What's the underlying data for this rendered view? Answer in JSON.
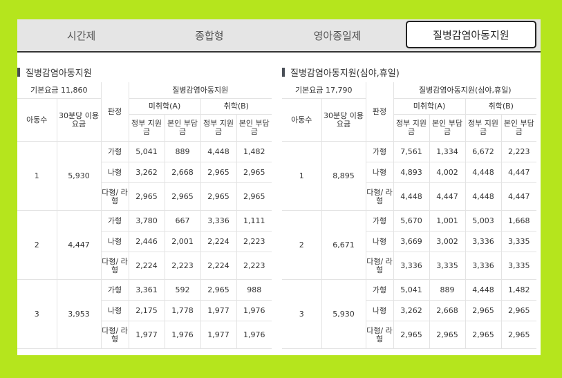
{
  "tabs": [
    {
      "label": "시간제",
      "active": false
    },
    {
      "label": "종합형",
      "active": false
    },
    {
      "label": "영아종일제",
      "active": false
    },
    {
      "label": "질병감염아동지원",
      "active": true
    }
  ],
  "left": {
    "section_title": "질병감염아동지원",
    "base_fee": "기본요금 11,860",
    "group_header": "질병감염아동지원",
    "col_children": "아동수",
    "col_rate": "30분당 이용요금",
    "col_grade": "판정",
    "not_school": "미취학(A)",
    "school": "취학(B)",
    "gov": "정부 지원금",
    "self": "본인 부담금",
    "rows": [
      {
        "count": "1",
        "rate": "5,930",
        "grades": [
          {
            "grade": "가형",
            "a_gov": "5,041",
            "a_self": "889",
            "b_gov": "4,448",
            "b_self": "1,482"
          },
          {
            "grade": "나형",
            "a_gov": "3,262",
            "a_self": "2,668",
            "b_gov": "2,965",
            "b_self": "2,965"
          },
          {
            "grade": "다형/ 라형",
            "a_gov": "2,965",
            "a_self": "2,965",
            "b_gov": "2,965",
            "b_self": "2,965"
          }
        ]
      },
      {
        "count": "2",
        "rate": "4,447",
        "grades": [
          {
            "grade": "가형",
            "a_gov": "3,780",
            "a_self": "667",
            "b_gov": "3,336",
            "b_self": "1,111"
          },
          {
            "grade": "나형",
            "a_gov": "2,446",
            "a_self": "2,001",
            "b_gov": "2,224",
            "b_self": "2,223"
          },
          {
            "grade": "다형/ 라형",
            "a_gov": "2,224",
            "a_self": "2,223",
            "b_gov": "2,224",
            "b_self": "2,223"
          }
        ]
      },
      {
        "count": "3",
        "rate": "3,953",
        "grades": [
          {
            "grade": "가형",
            "a_gov": "3,361",
            "a_self": "592",
            "b_gov": "2,965",
            "b_self": "988"
          },
          {
            "grade": "나형",
            "a_gov": "2,175",
            "a_self": "1,778",
            "b_gov": "1,977",
            "b_self": "1,976"
          },
          {
            "grade": "다형/ 라형",
            "a_gov": "1,977",
            "a_self": "1,976",
            "b_gov": "1,977",
            "b_self": "1,976"
          }
        ]
      }
    ]
  },
  "right": {
    "section_title": "질병감염아동지원(심야,휴일)",
    "base_fee": "기본요금 17,790",
    "group_header": "질병감염아동지원(심야,휴일)",
    "col_children": "아동수",
    "col_rate": "30분당 이용요금",
    "col_grade": "판정",
    "not_school": "미취학(A)",
    "school": "취학(B)",
    "gov": "정부 지원금",
    "self": "본인 부담금",
    "rows": [
      {
        "count": "1",
        "rate": "8,895",
        "grades": [
          {
            "grade": "가형",
            "a_gov": "7,561",
            "a_self": "1,334",
            "b_gov": "6,672",
            "b_self": "2,223"
          },
          {
            "grade": "나형",
            "a_gov": "4,893",
            "a_self": "4,002",
            "b_gov": "4,448",
            "b_self": "4,447"
          },
          {
            "grade": "다형/ 라형",
            "a_gov": "4,448",
            "a_self": "4,447",
            "b_gov": "4,448",
            "b_self": "4,447"
          }
        ]
      },
      {
        "count": "2",
        "rate": "6,671",
        "grades": [
          {
            "grade": "가형",
            "a_gov": "5,670",
            "a_self": "1,001",
            "b_gov": "5,003",
            "b_self": "1,668"
          },
          {
            "grade": "나형",
            "a_gov": "3,669",
            "a_self": "3,002",
            "b_gov": "3,336",
            "b_self": "3,335"
          },
          {
            "grade": "다형/ 라형",
            "a_gov": "3,336",
            "a_self": "3,335",
            "b_gov": "3,336",
            "b_self": "3,335"
          }
        ]
      },
      {
        "count": "3",
        "rate": "5,930",
        "grades": [
          {
            "grade": "가형",
            "a_gov": "5,041",
            "a_self": "889",
            "b_gov": "4,448",
            "b_self": "1,482"
          },
          {
            "grade": "나형",
            "a_gov": "3,262",
            "a_self": "2,668",
            "b_gov": "2,965",
            "b_self": "2,965"
          },
          {
            "grade": "다형/ 라형",
            "a_gov": "2,965",
            "a_self": "2,965",
            "b_gov": "2,965",
            "b_self": "2,965"
          }
        ]
      }
    ]
  }
}
